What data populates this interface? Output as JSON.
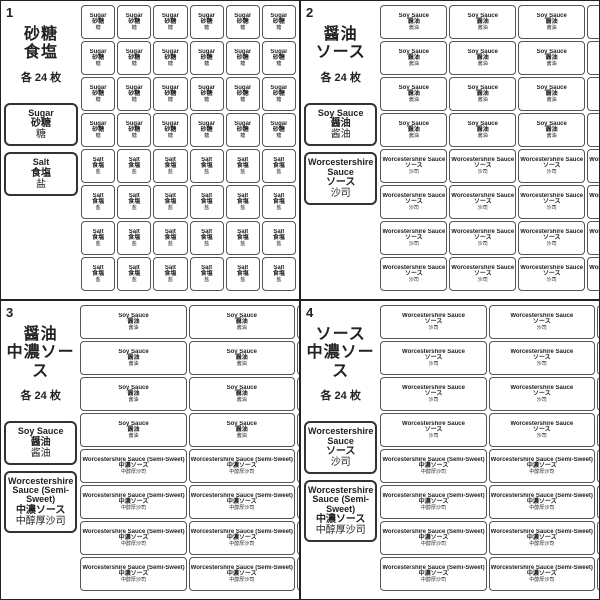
{
  "colors": {
    "border": "#333",
    "text": "#222",
    "bg": "#ffffff"
  },
  "common": {
    "count": "各 24 枚",
    "grid_cols": 6,
    "item_rows": 4
  },
  "quads": [
    {
      "num": "1",
      "title": "砂糖\n食塩",
      "details": [
        {
          "en": "Sugar",
          "jp": "砂糖",
          "cn": "糖"
        },
        {
          "en": "Salt",
          "jp": "食塩",
          "cn": "盐"
        }
      ],
      "items": [
        {
          "en": "Sugar",
          "jp": "砂糖",
          "cn": "糖"
        },
        {
          "en": "Salt",
          "jp": "食塩",
          "cn": "盐"
        }
      ]
    },
    {
      "num": "2",
      "title": "醤油\nソース",
      "details": [
        {
          "en": "Soy Sauce",
          "jp": "醤油",
          "cn": "酱油"
        },
        {
          "en": "Worcestershire Sauce",
          "jp": "ソース",
          "cn": "沙司"
        }
      ],
      "items": [
        {
          "en": "Soy Sauce",
          "jp": "醤油",
          "cn": "酱油"
        },
        {
          "en": "Worcestershire Sauce",
          "jp": "ソース",
          "cn": "沙司"
        }
      ]
    },
    {
      "num": "3",
      "title": "醤油\n中濃ソース",
      "details": [
        {
          "en": "Soy Sauce",
          "jp": "醤油",
          "cn": "酱油"
        },
        {
          "en": "Worcestershire Sauce (Semi-Sweet)",
          "jp": "中濃ソース",
          "cn": "中醇厚沙司"
        }
      ],
      "items": [
        {
          "en": "Soy Sauce",
          "jp": "醤油",
          "cn": "酱油"
        },
        {
          "en": "Worcestershire Sauce (Semi-Sweet)",
          "jp": "中濃ソース",
          "cn": "中醇厚沙司"
        }
      ]
    },
    {
      "num": "4",
      "title": "ソース\n中濃ソース",
      "details": [
        {
          "en": "Worcestershire Sauce",
          "jp": "ソース",
          "cn": "沙司"
        },
        {
          "en": "Worcestershire Sauce (Semi-Sweet)",
          "jp": "中濃ソース",
          "cn": "中醇厚沙司"
        }
      ],
      "items": [
        {
          "en": "Worcestershire Sauce",
          "jp": "ソース",
          "cn": "沙司"
        },
        {
          "en": "Worcestershire Sauce (Semi-Sweet)",
          "jp": "中濃ソース",
          "cn": "中醇厚沙司"
        }
      ]
    }
  ]
}
